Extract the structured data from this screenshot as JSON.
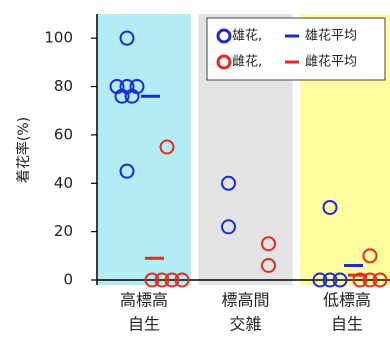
{
  "chart_data": {
    "type": "strip",
    "categories": [
      [
        "高標高",
        "自生"
      ],
      [
        "標高間",
        "交雑"
      ],
      [
        "低標高",
        "自生"
      ]
    ],
    "category_colors": [
      "#b3ecf5",
      "#e3e3e3",
      "#ffff9e"
    ],
    "y_label": "着花率(%)",
    "ylim": [
      0,
      110
    ],
    "yticks": [
      0,
      20,
      40,
      60,
      80,
      100
    ],
    "series": [
      {
        "name": "雄花,",
        "color": "#1a2bd6",
        "points": [
          [
            100,
            80,
            80,
            80,
            76,
            76,
            45
          ],
          [
            40,
            22
          ],
          [
            30,
            0,
            0,
            0
          ]
        ]
      },
      {
        "name": "雌花,",
        "color": "#e8291f",
        "points": [
          [
            55,
            0,
            0,
            0,
            0
          ],
          [
            15,
            6
          ],
          [
            10,
            0,
            0,
            0
          ]
        ]
      }
    ],
    "means": [
      {
        "name": "雄花平均",
        "color": "#1a2bd6",
        "values": [
          76,
          null,
          6
        ]
      },
      {
        "name": "雌花平均",
        "color": "#e8291f",
        "values": [
          9,
          null,
          2
        ]
      }
    ]
  }
}
